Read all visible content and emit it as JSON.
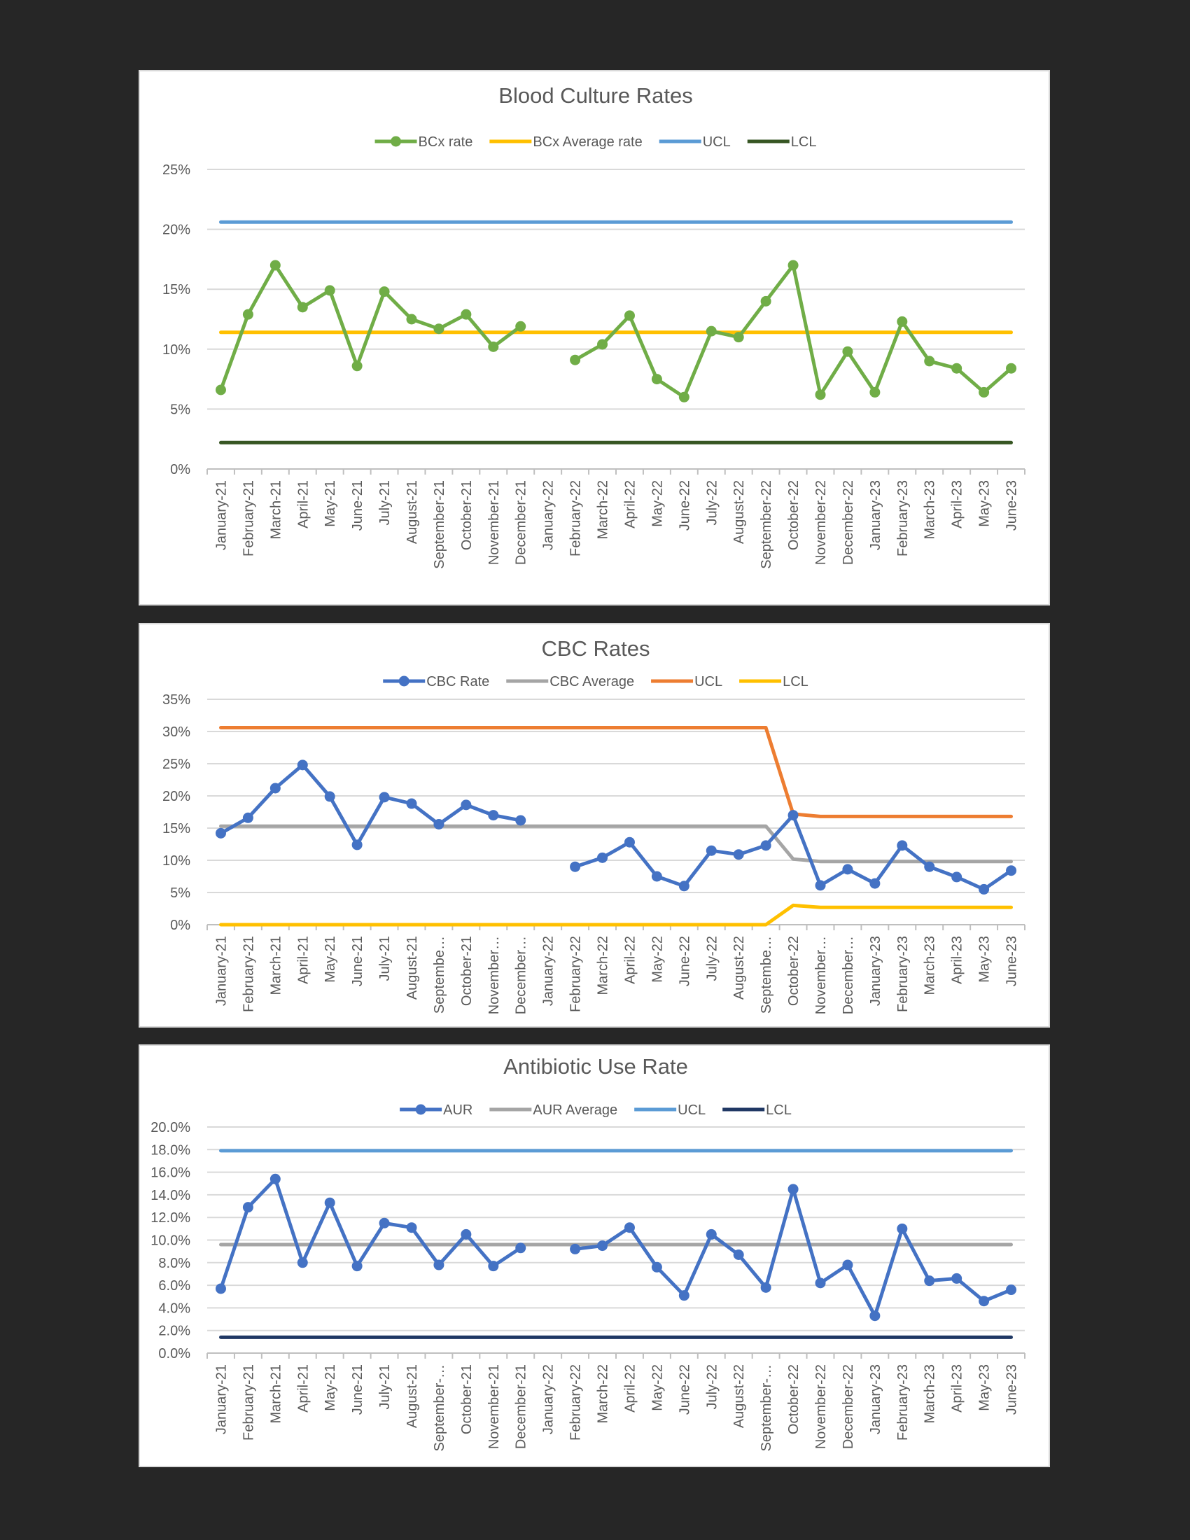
{
  "chart_data": [
    {
      "type": "line",
      "title": "Blood Culture Rates",
      "categories": [
        "January-21",
        "February-21",
        "March-21",
        "April-21",
        "May-21",
        "June-21",
        "July-21",
        "August-21",
        "September-21",
        "October-21",
        "November-21",
        "December-21",
        "January-22",
        "February-22",
        "March-22",
        "April-22",
        "May-22",
        "June-22",
        "July-22",
        "August-22",
        "September-22",
        "October-22",
        "November-22",
        "December-22",
        "January-23",
        "February-23",
        "March-23",
        "April-23",
        "May-23",
        "June-23"
      ],
      "yticks": [
        "0%",
        "5%",
        "10%",
        "15%",
        "20%",
        "25%"
      ],
      "ylim": [
        0,
        25
      ],
      "series": [
        {
          "name": "BCx rate",
          "color": "#70ad47",
          "markers": true,
          "values": [
            6.6,
            12.9,
            17.0,
            13.5,
            14.9,
            8.6,
            14.8,
            12.5,
            11.7,
            12.9,
            10.2,
            11.9,
            null,
            9.1,
            10.4,
            12.8,
            7.5,
            6.0,
            11.5,
            11.0,
            14.0,
            17.0,
            6.2,
            9.8,
            6.4,
            12.3,
            9.0,
            8.4,
            6.4,
            8.4
          ]
        },
        {
          "name": "BCx Average rate",
          "color": "#ffc000",
          "markers": false,
          "values": [
            11.4,
            11.4,
            11.4,
            11.4,
            11.4,
            11.4,
            11.4,
            11.4,
            11.4,
            11.4,
            11.4,
            11.4,
            11.4,
            11.4,
            11.4,
            11.4,
            11.4,
            11.4,
            11.4,
            11.4,
            11.4,
            11.4,
            11.4,
            11.4,
            11.4,
            11.4,
            11.4,
            11.4,
            11.4,
            11.4
          ]
        },
        {
          "name": "UCL",
          "color": "#5b9bd5",
          "markers": false,
          "values": [
            20.6,
            20.6,
            20.6,
            20.6,
            20.6,
            20.6,
            20.6,
            20.6,
            20.6,
            20.6,
            20.6,
            20.6,
            20.6,
            20.6,
            20.6,
            20.6,
            20.6,
            20.6,
            20.6,
            20.6,
            20.6,
            20.6,
            20.6,
            20.6,
            20.6,
            20.6,
            20.6,
            20.6,
            20.6,
            20.6
          ]
        },
        {
          "name": "LCL",
          "color": "#375623",
          "markers": false,
          "values": [
            2.2,
            2.2,
            2.2,
            2.2,
            2.2,
            2.2,
            2.2,
            2.2,
            2.2,
            2.2,
            2.2,
            2.2,
            2.2,
            2.2,
            2.2,
            2.2,
            2.2,
            2.2,
            2.2,
            2.2,
            2.2,
            2.2,
            2.2,
            2.2,
            2.2,
            2.2,
            2.2,
            2.2,
            2.2,
            2.2
          ]
        }
      ],
      "legend": "top",
      "grid": true
    },
    {
      "type": "line",
      "title": "CBC Rates",
      "categories": [
        "January-21",
        "February-21",
        "March-21",
        "April-21",
        "May-21",
        "June-21",
        "July-21",
        "August-21",
        "Septembe…",
        "October-21",
        "November…",
        "December…",
        "January-22",
        "February-22",
        "March-22",
        "April-22",
        "May-22",
        "June-22",
        "July-22",
        "August-22",
        "Septembe…",
        "October-22",
        "November…",
        "December…",
        "January-23",
        "February-23",
        "March-23",
        "April-23",
        "May-23",
        "June-23"
      ],
      "yticks": [
        "0%",
        "5%",
        "10%",
        "15%",
        "20%",
        "25%",
        "30%",
        "35%"
      ],
      "ylim": [
        0,
        35
      ],
      "series": [
        {
          "name": "CBC Rate",
          "color": "#4472c4",
          "markers": true,
          "values": [
            14.2,
            16.6,
            21.2,
            24.8,
            19.9,
            12.4,
            19.8,
            18.8,
            15.6,
            18.6,
            17.0,
            16.2,
            null,
            9.0,
            10.4,
            12.8,
            7.5,
            6.0,
            11.5,
            10.9,
            12.3,
            17.0,
            6.1,
            8.6,
            6.4,
            12.3,
            9.0,
            7.4,
            5.5,
            8.4
          ]
        },
        {
          "name": "CBC Average",
          "color": "#a5a5a5",
          "markers": false,
          "values": [
            15.3,
            15.3,
            15.3,
            15.3,
            15.3,
            15.3,
            15.3,
            15.3,
            15.3,
            15.3,
            15.3,
            15.3,
            15.3,
            15.3,
            15.3,
            15.3,
            15.3,
            15.3,
            15.3,
            15.3,
            15.3,
            10.2,
            9.8,
            9.8,
            9.8,
            9.8,
            9.8,
            9.8,
            9.8,
            9.8
          ]
        },
        {
          "name": "UCL",
          "color": "#ed7d31",
          "markers": false,
          "values": [
            30.6,
            30.6,
            30.6,
            30.6,
            30.6,
            30.6,
            30.6,
            30.6,
            30.6,
            30.6,
            30.6,
            30.6,
            30.6,
            30.6,
            30.6,
            30.6,
            30.6,
            30.6,
            30.6,
            30.6,
            30.6,
            17.2,
            16.8,
            16.8,
            16.8,
            16.8,
            16.8,
            16.8,
            16.8,
            16.8
          ]
        },
        {
          "name": "LCL",
          "color": "#ffc000",
          "markers": false,
          "values": [
            0,
            0,
            0,
            0,
            0,
            0,
            0,
            0,
            0,
            0,
            0,
            0,
            0,
            0,
            0,
            0,
            0,
            0,
            0,
            0,
            0,
            3.0,
            2.7,
            2.7,
            2.7,
            2.7,
            2.7,
            2.7,
            2.7,
            2.7
          ]
        }
      ],
      "legend": "top",
      "grid": true
    },
    {
      "type": "line",
      "title": "Antibiotic Use Rate",
      "categories": [
        "January-21",
        "February-21",
        "March-21",
        "April-21",
        "May-21",
        "June-21",
        "July-21",
        "August-21",
        "September-…",
        "October-21",
        "November-21",
        "December-21",
        "January-22",
        "February-22",
        "March-22",
        "April-22",
        "May-22",
        "June-22",
        "July-22",
        "August-22",
        "September-…",
        "October-22",
        "November-22",
        "December-22",
        "January-23",
        "February-23",
        "March-23",
        "April-23",
        "May-23",
        "June-23"
      ],
      "yticks": [
        "0.0%",
        "2.0%",
        "4.0%",
        "6.0%",
        "8.0%",
        "10.0%",
        "12.0%",
        "14.0%",
        "16.0%",
        "18.0%",
        "20.0%"
      ],
      "ylim": [
        0,
        20
      ],
      "series": [
        {
          "name": "AUR",
          "color": "#4472c4",
          "markers": true,
          "values": [
            5.7,
            12.9,
            15.4,
            8.0,
            13.3,
            7.7,
            11.5,
            11.1,
            7.8,
            10.5,
            7.7,
            9.3,
            null,
            9.2,
            9.5,
            11.1,
            7.6,
            5.1,
            10.5,
            8.7,
            5.8,
            14.5,
            6.2,
            7.8,
            3.3,
            11.0,
            6.4,
            6.6,
            4.6,
            5.6
          ]
        },
        {
          "name": "AUR Average",
          "color": "#a5a5a5",
          "markers": false,
          "values": [
            9.6,
            9.6,
            9.6,
            9.6,
            9.6,
            9.6,
            9.6,
            9.6,
            9.6,
            9.6,
            9.6,
            9.6,
            9.6,
            9.6,
            9.6,
            9.6,
            9.6,
            9.6,
            9.6,
            9.6,
            9.6,
            9.6,
            9.6,
            9.6,
            9.6,
            9.6,
            9.6,
            9.6,
            9.6,
            9.6
          ]
        },
        {
          "name": "UCL",
          "color": "#5b9bd5",
          "markers": false,
          "values": [
            17.9,
            17.9,
            17.9,
            17.9,
            17.9,
            17.9,
            17.9,
            17.9,
            17.9,
            17.9,
            17.9,
            17.9,
            17.9,
            17.9,
            17.9,
            17.9,
            17.9,
            17.9,
            17.9,
            17.9,
            17.9,
            17.9,
            17.9,
            17.9,
            17.9,
            17.9,
            17.9,
            17.9,
            17.9,
            17.9
          ]
        },
        {
          "name": "LCL",
          "color": "#203864",
          "markers": false,
          "values": [
            1.4,
            1.4,
            1.4,
            1.4,
            1.4,
            1.4,
            1.4,
            1.4,
            1.4,
            1.4,
            1.4,
            1.4,
            1.4,
            1.4,
            1.4,
            1.4,
            1.4,
            1.4,
            1.4,
            1.4,
            1.4,
            1.4,
            1.4,
            1.4,
            1.4,
            1.4,
            1.4,
            1.4,
            1.4,
            1.4
          ]
        }
      ],
      "legend": "top",
      "grid": true
    }
  ]
}
